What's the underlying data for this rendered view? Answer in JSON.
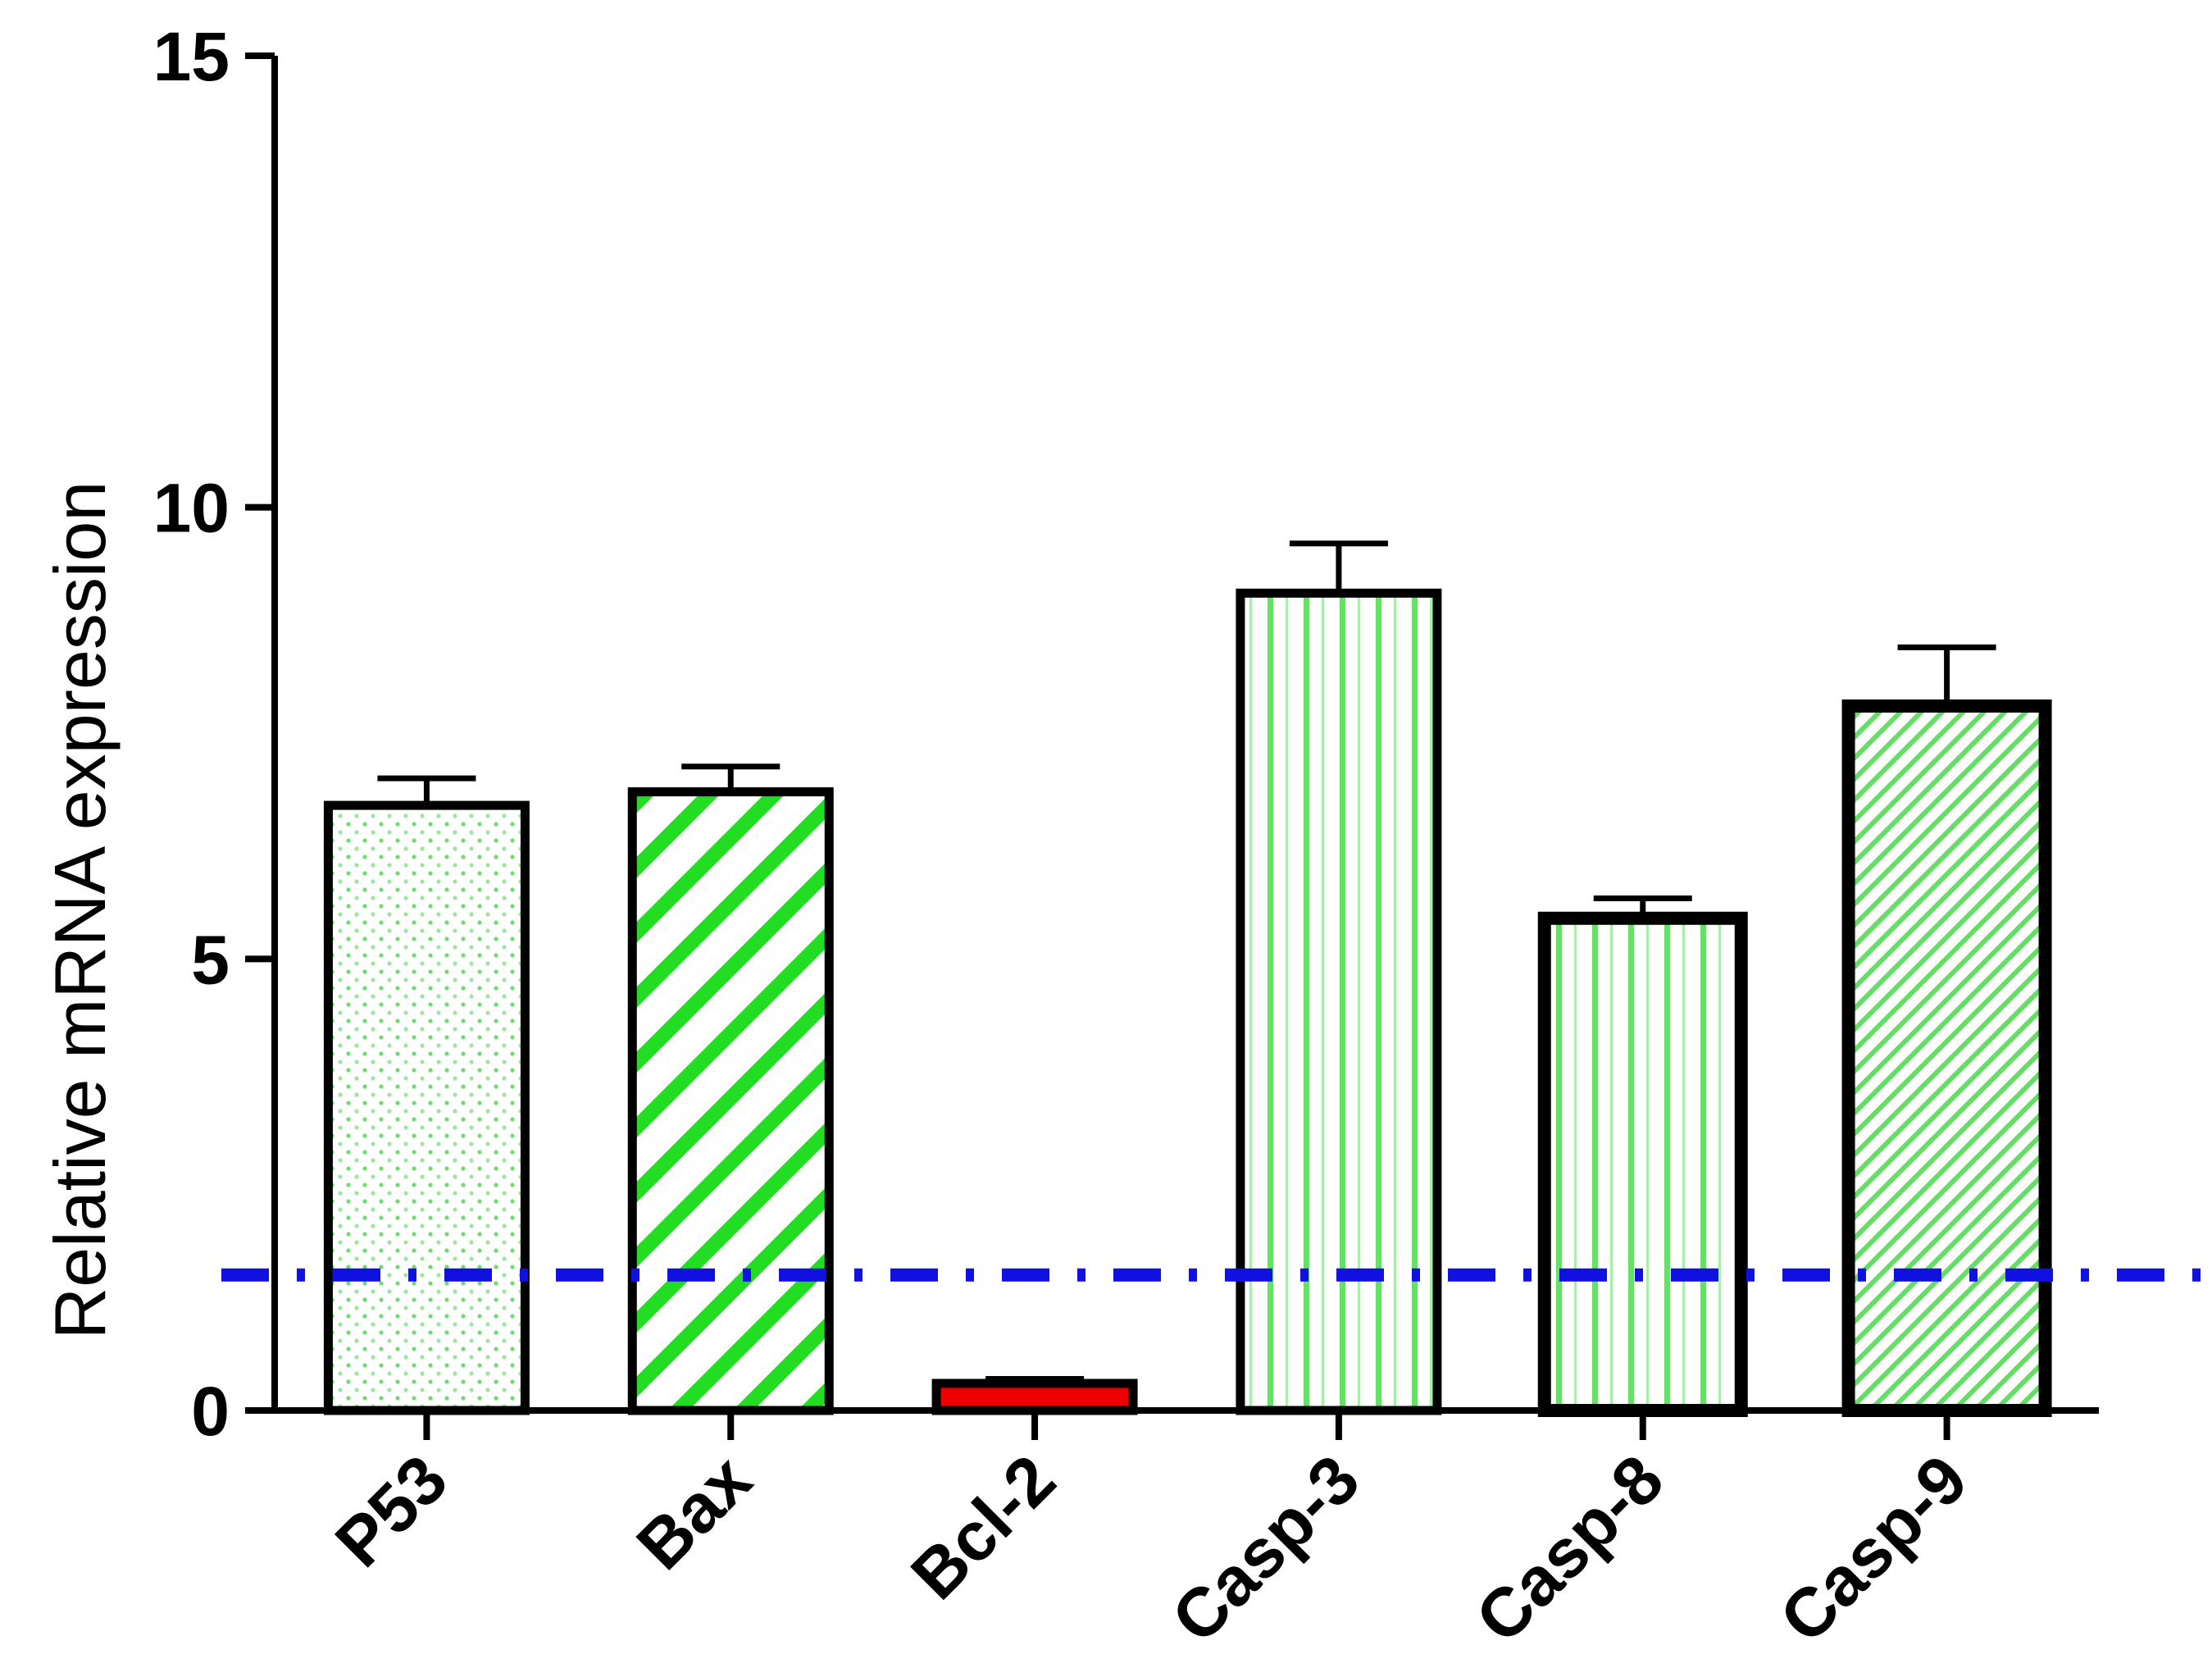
{
  "chart_data": {
    "type": "bar",
    "title": "",
    "xlabel": "",
    "ylabel": "Relative mRNA expression",
    "ylim": [
      0,
      15
    ],
    "yticks": [
      0,
      5,
      10,
      15
    ],
    "categories": [
      "P53",
      "Bax",
      "Bcl-2",
      "Casp-3",
      "Casp-8",
      "Casp-9"
    ],
    "values": [
      6.7,
      6.85,
      0.3,
      9.05,
      5.45,
      7.8
    ],
    "errors": [
      0.3,
      0.28,
      0.05,
      0.55,
      0.22,
      0.65
    ],
    "reference_line": {
      "y": 1.5,
      "style": "dash-dot",
      "color": "#1010e0"
    },
    "bar_styles": [
      {
        "pattern": "dots",
        "color": "#6fdc6f"
      },
      {
        "pattern": "wide-diagonal",
        "color": "#22dd22"
      },
      {
        "pattern": "solid",
        "color": "#ee0000"
      },
      {
        "pattern": "vertical-stripes",
        "color": "#66e066"
      },
      {
        "pattern": "vertical-stripes",
        "color": "#55dd55"
      },
      {
        "pattern": "fine-diagonal",
        "color": "#66dd66"
      }
    ],
    "grid": false,
    "legend": "none"
  }
}
